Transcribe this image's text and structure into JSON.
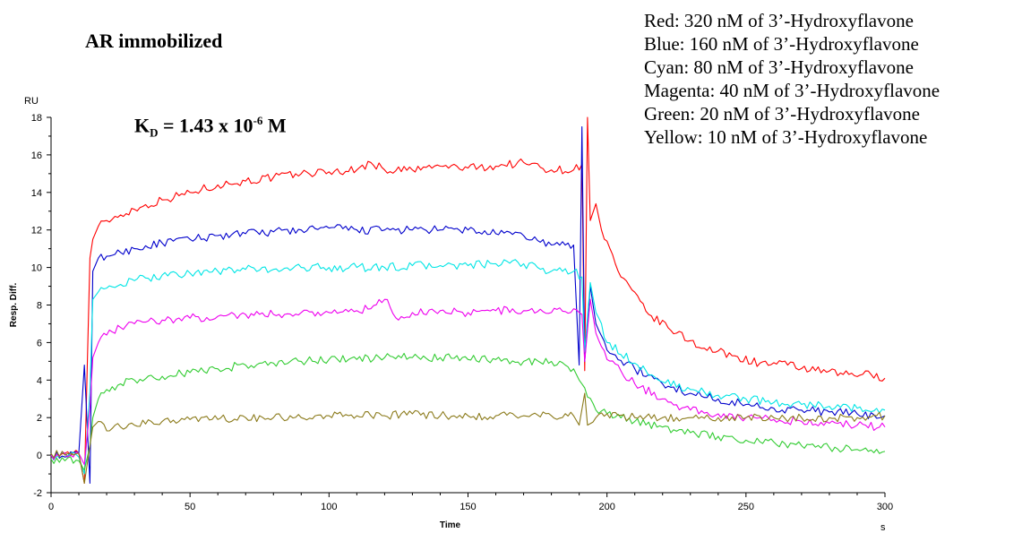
{
  "header": {
    "title": "AR immobilized",
    "kd_prefix": "K",
    "kd_sub": "D",
    "kd_mid": " = 1.43 x 10",
    "kd_exp": "-6",
    "kd_unit": " M"
  },
  "legend_lines": [
    "Red: 320 nM of 3’-Hydroxyflavone",
    "Blue: 160 nM of 3’-Hydroxyflavone",
    "Cyan: 80 nM of 3’-Hydroxyflavone",
    "Magenta: 40 nM of 3’-Hydroxyflavone",
    "Green: 20 nM of 3’-Hydroxyflavone",
    "Yellow: 10 nM of 3’-Hydroxyflavone"
  ],
  "chart_data": {
    "type": "line",
    "title": "",
    "xlabel": "Time",
    "xunit": "s",
    "ylabel": "Resp. Diff.",
    "yunit": "RU",
    "xlim": [
      0,
      300
    ],
    "ylim": [
      -2,
      18
    ],
    "xticks": [
      0,
      50,
      100,
      150,
      200,
      250,
      300
    ],
    "yticks": [
      -2,
      0,
      2,
      4,
      6,
      8,
      10,
      12,
      14,
      16,
      18
    ],
    "grid": false,
    "legend_position": "top-right",
    "series": [
      {
        "color": "#ff0000",
        "x": [
          0,
          5,
          10,
          12,
          14,
          15,
          17,
          20,
          25,
          30,
          40,
          50,
          60,
          70,
          80,
          90,
          100,
          110,
          115,
          120,
          130,
          140,
          150,
          160,
          170,
          180,
          188,
          191,
          192,
          193,
          194,
          196,
          198,
          205,
          215,
          225,
          235,
          245,
          255,
          265,
          275,
          285,
          295,
          300
        ],
        "y": [
          0,
          0.1,
          0.1,
          -1.5,
          10.5,
          11.5,
          12.2,
          12.5,
          12.8,
          13.1,
          13.6,
          14.0,
          14.4,
          14.6,
          14.8,
          15.0,
          15.1,
          15.2,
          15.6,
          15.2,
          15.2,
          15.4,
          15.3,
          15.4,
          15.6,
          15.2,
          15.2,
          15.5,
          4.5,
          18.0,
          12.5,
          13.4,
          12.0,
          9.5,
          7.5,
          6.5,
          5.7,
          5.3,
          4.9,
          4.8,
          4.5,
          4.3,
          4.3,
          4.1
        ]
      },
      {
        "color": "#0000cc",
        "x": [
          0,
          5,
          10,
          12,
          14,
          15,
          17,
          20,
          25,
          30,
          40,
          50,
          60,
          70,
          80,
          90,
          100,
          110,
          120,
          130,
          140,
          150,
          160,
          170,
          180,
          188,
          190,
          191,
          192,
          194,
          196,
          200,
          210,
          220,
          230,
          240,
          250,
          260,
          270,
          280,
          290,
          300
        ],
        "y": [
          0,
          -0.1,
          0.1,
          4.8,
          -1.5,
          9.8,
          10.5,
          10.6,
          10.8,
          11.0,
          11.3,
          11.5,
          11.7,
          11.8,
          11.9,
          12.0,
          12.1,
          12.0,
          12.0,
          12.0,
          12.0,
          12.0,
          11.8,
          11.7,
          11.2,
          11.2,
          4.8,
          17.5,
          5.0,
          9.0,
          7.0,
          5.6,
          4.6,
          3.8,
          3.3,
          3.0,
          2.7,
          2.5,
          2.4,
          2.3,
          2.2,
          2.1
        ]
      },
      {
        "color": "#00e5e5",
        "x": [
          0,
          5,
          10,
          12,
          14,
          15,
          17,
          20,
          25,
          30,
          40,
          50,
          60,
          70,
          80,
          90,
          100,
          110,
          120,
          130,
          140,
          150,
          160,
          170,
          180,
          188,
          191,
          192,
          194,
          196,
          200,
          210,
          220,
          230,
          240,
          250,
          260,
          270,
          280,
          290,
          300
        ],
        "y": [
          0,
          0.1,
          -0.1,
          -1.0,
          3.4,
          8.3,
          8.7,
          8.9,
          9.1,
          9.3,
          9.6,
          9.7,
          9.8,
          9.9,
          9.9,
          10.0,
          10.0,
          10.0,
          10.0,
          10.1,
          10.1,
          10.1,
          10.2,
          10.2,
          9.8,
          9.8,
          9.5,
          5.5,
          9.2,
          7.6,
          6.0,
          4.9,
          3.9,
          3.5,
          3.2,
          3.0,
          2.8,
          2.7,
          2.6,
          2.5,
          2.4
        ]
      },
      {
        "color": "#ee00ee",
        "x": [
          0,
          5,
          10,
          12,
          14,
          15,
          17,
          20,
          25,
          30,
          40,
          50,
          60,
          70,
          80,
          90,
          100,
          110,
          115,
          120,
          125,
          130,
          140,
          150,
          160,
          170,
          180,
          188,
          191,
          192,
          194,
          196,
          200,
          210,
          220,
          230,
          240,
          250,
          260,
          270,
          280,
          290,
          300
        ],
        "y": [
          0,
          0.1,
          0.1,
          -0.5,
          2.5,
          5.2,
          6.0,
          6.4,
          6.8,
          7.0,
          7.2,
          7.3,
          7.4,
          7.5,
          7.5,
          7.6,
          7.6,
          7.7,
          7.8,
          8.3,
          7.2,
          7.6,
          7.7,
          7.6,
          7.7,
          7.7,
          7.6,
          7.8,
          7.5,
          5.0,
          8.3,
          6.5,
          5.1,
          3.8,
          3.0,
          2.4,
          2.2,
          2.0,
          1.9,
          1.8,
          1.7,
          1.6,
          1.5
        ]
      },
      {
        "color": "#33cc33",
        "x": [
          0,
          5,
          10,
          12,
          14,
          15,
          17,
          20,
          25,
          30,
          40,
          50,
          60,
          70,
          80,
          90,
          100,
          110,
          120,
          130,
          140,
          150,
          160,
          170,
          180,
          185,
          188,
          190,
          193,
          196,
          200,
          210,
          220,
          230,
          240,
          250,
          260,
          270,
          280,
          290,
          300
        ],
        "y": [
          -0.2,
          -0.3,
          -0.3,
          -0.8,
          0.5,
          2.0,
          3.0,
          3.5,
          3.8,
          4.0,
          4.2,
          4.4,
          4.6,
          4.8,
          4.9,
          5.0,
          5.1,
          5.1,
          5.2,
          5.2,
          5.2,
          5.1,
          5.1,
          5.0,
          5.0,
          4.8,
          4.6,
          4.0,
          3.1,
          2.4,
          2.2,
          1.8,
          1.5,
          1.2,
          1.0,
          0.8,
          0.7,
          0.5,
          0.4,
          0.3,
          0.2
        ]
      },
      {
        "color": "#8b7a1a",
        "x": [
          0,
          5,
          10,
          12,
          14,
          15,
          17,
          20,
          25,
          30,
          40,
          50,
          60,
          70,
          80,
          90,
          100,
          110,
          120,
          130,
          140,
          150,
          160,
          170,
          180,
          188,
          190,
          192,
          193,
          196,
          200,
          210,
          220,
          230,
          240,
          250,
          260,
          270,
          280,
          290,
          300
        ],
        "y": [
          0.1,
          0.0,
          0.1,
          -1.5,
          0.5,
          1.5,
          1.8,
          1.3,
          1.5,
          1.6,
          1.8,
          1.9,
          1.9,
          2.0,
          2.0,
          2.0,
          2.1,
          2.1,
          2.1,
          2.2,
          2.1,
          2.1,
          2.1,
          2.1,
          2.1,
          2.1,
          1.6,
          3.3,
          1.6,
          2.0,
          2.2,
          2.0,
          2.0,
          2.0,
          2.0,
          2.0,
          2.0,
          2.0,
          2.0,
          2.0,
          2.1
        ]
      }
    ]
  }
}
